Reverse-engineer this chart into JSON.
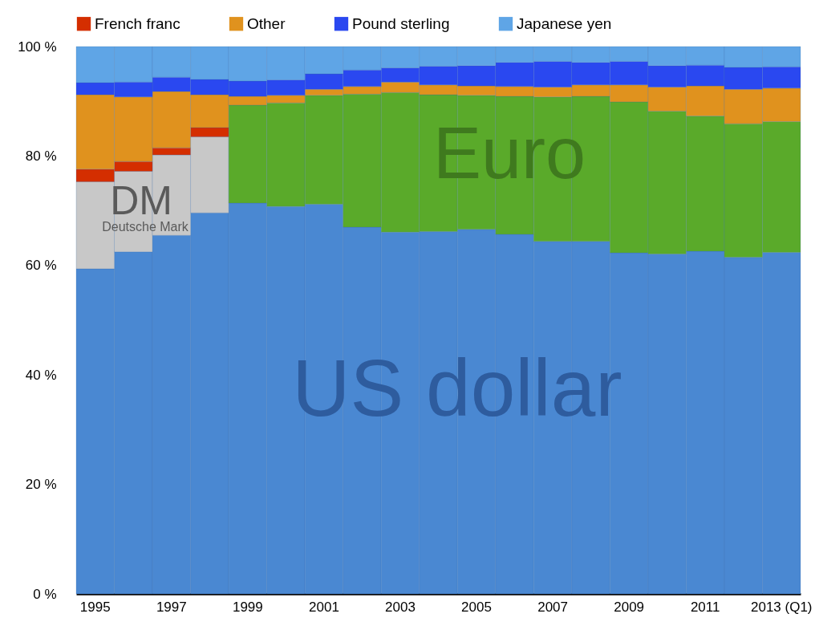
{
  "chart_data": {
    "type": "bar",
    "stacked": true,
    "categories": [
      "1995",
      null,
      "1997",
      null,
      "1999",
      null,
      "2001",
      null,
      "2003",
      null,
      "2005",
      null,
      "2007",
      null,
      "2009",
      null,
      "2011",
      null,
      "2013 (Q1)"
    ],
    "series": [
      {
        "color": "#4a88d2",
        "values": [
          59.4,
          62.5,
          65.5,
          69.6,
          71.4,
          70.8,
          71.2,
          67.0,
          66.1,
          66.2,
          66.6,
          65.7,
          64.4,
          64.4,
          62.3,
          62.1,
          62.6,
          61.5,
          62.4
        ]
      },
      {
        "color": "#c8c8c8",
        "values": [
          15.9,
          14.7,
          14.7,
          13.9,
          null,
          null,
          null,
          null,
          null,
          null,
          null,
          null,
          null,
          null,
          null,
          null,
          null,
          null,
          null
        ]
      },
      {
        "color": "#5aaa2a",
        "values": [
          null,
          null,
          null,
          null,
          17.9,
          18.9,
          19.9,
          24.3,
          25.5,
          25.0,
          24.5,
          25.2,
          26.4,
          26.5,
          27.6,
          26.1,
          24.7,
          24.4,
          23.9
        ]
      },
      {
        "name": "French franc",
        "color": "#d42e00",
        "values": [
          2.3,
          1.8,
          1.3,
          1.7,
          null,
          null,
          null,
          null,
          null,
          null,
          null,
          null,
          null,
          null,
          null,
          null,
          null,
          null,
          null
        ]
      },
      {
        "name": "Other",
        "color": "#e0921e",
        "values": [
          13.6,
          11.8,
          10.3,
          6.0,
          1.6,
          1.4,
          1.1,
          1.4,
          1.9,
          1.8,
          1.7,
          1.8,
          1.8,
          2.1,
          3.1,
          4.4,
          5.5,
          6.3,
          6.1
        ]
      },
      {
        "name": "Pound sterling",
        "color": "#2a48f0",
        "values": [
          2.2,
          2.7,
          2.6,
          2.8,
          2.8,
          2.8,
          2.8,
          3.0,
          2.6,
          3.4,
          3.7,
          4.4,
          4.7,
          4.1,
          4.3,
          3.9,
          3.8,
          4.0,
          3.9
        ]
      },
      {
        "name": "Japanese yen",
        "color": "#5fa5e6",
        "values": [
          6.6,
          6.5,
          5.6,
          6.0,
          6.3,
          6.1,
          5.0,
          4.3,
          3.9,
          3.6,
          3.5,
          2.9,
          2.7,
          2.9,
          2.7,
          3.5,
          3.4,
          3.8,
          3.7
        ]
      }
    ],
    "annotations": [
      "US dollar",
      "Euro",
      "DM",
      "Deutsche Mark"
    ],
    "ylim": [
      0,
      100
    ],
    "yticks": [
      {
        "value": 0,
        "label": "0 %"
      },
      {
        "value": 20,
        "label": "20 %"
      },
      {
        "value": 40,
        "label": "40 %"
      },
      {
        "value": 60,
        "label": "60 %"
      },
      {
        "value": 80,
        "label": "80 %"
      },
      {
        "value": 100,
        "label": "100 %"
      }
    ],
    "grid": false,
    "legend": "top"
  }
}
